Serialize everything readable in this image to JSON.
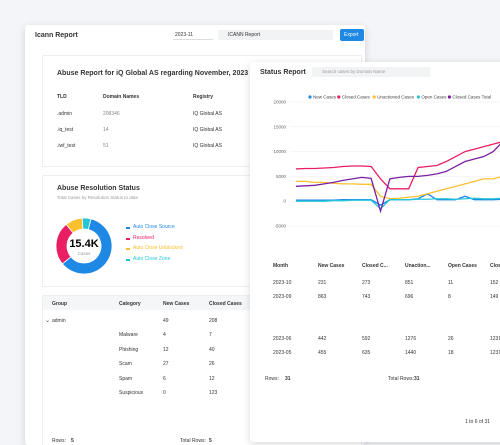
{
  "left": {
    "title": "Icann Report",
    "period": "2023-11",
    "report": "ICANN Report",
    "export": "Export",
    "abuse": {
      "title": "Abuse Report for iQ Global AS regarding November, 2023",
      "columns": [
        "TLD",
        "Domain Names",
        "Registry"
      ],
      "rows": [
        [
          ".admin",
          "208346",
          "IQ Global AS"
        ],
        [
          ".iq_test",
          "14",
          "IQ Global AS"
        ],
        [
          ".iwf_test",
          "51",
          "IQ Global AS"
        ]
      ]
    },
    "resolution": {
      "title": "Abuse Resolution Status",
      "subtitle": "Total Cases by Resolution Status to date",
      "total": "15.4K",
      "total_label": "Cases"
    },
    "groups": {
      "columns": [
        "Group",
        "Category",
        "New Cases",
        "Closed Cases"
      ],
      "rows": [
        {
          "group": "admin",
          "new": "49",
          "closed": "208",
          "children": [
            [
              "Malware",
              "4",
              "7"
            ],
            [
              "Phishing",
              "12",
              "40"
            ],
            [
              "Scam",
              "27",
              "26"
            ],
            [
              "Spam",
              "6",
              "12"
            ],
            [
              "Suspicious",
              "0",
              "123"
            ]
          ]
        }
      ],
      "rows_label": "Rows:",
      "rows_count": "5",
      "total_label": "Total Rows:",
      "total_count": "5"
    }
  },
  "right": {
    "title": "Status Report",
    "search": "Search cases by Domain Name",
    "table": {
      "columns": [
        "Month",
        "New Cases",
        "Closed C...",
        "Unaction...",
        "Open Cases",
        "Closed C..."
      ],
      "rows": [
        [
          "2023-10",
          "231",
          "273",
          "851",
          "11",
          "152"
        ],
        [
          "2023-09",
          "863",
          "743",
          "696",
          "8",
          "149"
        ],
        [
          "2023-06",
          "442",
          "592",
          "1276",
          "26",
          "1231"
        ],
        [
          "2023-05",
          "455",
          "635",
          "1440",
          "18",
          "1231"
        ]
      ],
      "rows_label": "Rows:",
      "rows_count": "31",
      "total_label": "Total Rows:",
      "total_count": "31",
      "pager": "1 to 6 of 31"
    }
  },
  "chart_data": [
    {
      "type": "pie",
      "categories": [
        "Auto Close Source",
        "Resolved",
        "Auto Close Unblocked",
        "Auto Close Zone"
      ],
      "values": [
        60,
        25,
        10,
        5
      ],
      "colors": [
        "#1e88e5",
        "#e91e63",
        "#fbc02d",
        "#26c6da"
      ]
    },
    {
      "type": "line",
      "ylim": [
        -5000,
        20000
      ],
      "yticks": [
        20000,
        15000,
        10000,
        5000,
        0,
        -5000
      ],
      "grid": true,
      "series": [
        {
          "name": "New Cases",
          "color": "#1e88e5",
          "values": [
            200,
            200,
            200,
            200,
            200,
            300,
            300,
            300,
            300,
            -800,
            300,
            300,
            300,
            500,
            1500,
            300,
            300,
            300,
            1000,
            300,
            300,
            300,
            400,
            300
          ]
        },
        {
          "name": "Closed Cases",
          "color": "#e91e63",
          "values": [
            6500,
            6600,
            6600,
            6700,
            6800,
            7000,
            7100,
            7100,
            7000,
            4500,
            2500,
            2500,
            2500,
            6800,
            7000,
            7200,
            8000,
            9000,
            10000,
            10500,
            11000,
            11500,
            12000,
            12500
          ]
        },
        {
          "name": "Unactioned Cases",
          "color": "#fbc02d",
          "values": [
            4000,
            4000,
            3800,
            3800,
            3600,
            3500,
            3500,
            3400,
            3400,
            1000,
            500,
            600,
            800,
            1000,
            1500,
            2000,
            2500,
            3000,
            3500,
            4000,
            4500,
            4500,
            5000,
            5500
          ]
        },
        {
          "name": "Open Cases",
          "color": "#26c6da",
          "values": [
            0,
            0,
            0,
            0,
            100,
            100,
            200,
            200,
            200,
            -1500,
            300,
            300,
            300,
            400,
            400,
            500,
            500,
            400,
            500,
            600,
            500,
            500,
            600,
            700
          ]
        },
        {
          "name": "Closed Cases Total",
          "color": "#7b1fa2",
          "values": [
            3000,
            3100,
            3200,
            3500,
            3800,
            4200,
            4500,
            4800,
            4600,
            -2000,
            4500,
            4800,
            5000,
            5000,
            5200,
            5500,
            6000,
            7000,
            8000,
            8500,
            9000,
            10000,
            12000,
            13500
          ]
        }
      ]
    }
  ]
}
